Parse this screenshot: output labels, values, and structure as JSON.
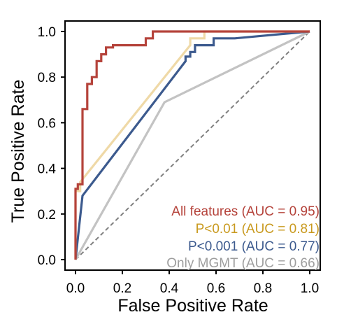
{
  "chart_data": {
    "type": "line",
    "title": "",
    "xlabel": "False Positive Rate",
    "ylabel": "True Positive Rate",
    "xlim": [
      0,
      1
    ],
    "ylim": [
      0,
      1
    ],
    "xticks": [
      "0.0",
      "0.2",
      "0.4",
      "0.6",
      "0.8",
      "1.0"
    ],
    "yticks": [
      "0.0",
      "0.2",
      "0.4",
      "0.6",
      "0.8",
      "1.0"
    ],
    "grid": false,
    "legend_position": "bottom-right",
    "reference_line": {
      "style": "dashed",
      "color": "#808080",
      "x": [
        0,
        1
      ],
      "y": [
        0,
        1
      ]
    },
    "series": [
      {
        "name": "All features (AUC = 0.95)",
        "color": "#B5433B",
        "x": [
          0.0,
          0.0,
          0.01,
          0.01,
          0.03,
          0.03,
          0.05,
          0.05,
          0.07,
          0.07,
          0.09,
          0.09,
          0.11,
          0.11,
          0.13,
          0.13,
          0.16,
          0.16,
          0.3,
          0.3,
          0.33,
          0.33,
          0.55,
          0.55,
          1.0
        ],
        "y": [
          0.0,
          0.31,
          0.31,
          0.33,
          0.33,
          0.66,
          0.66,
          0.77,
          0.77,
          0.8,
          0.8,
          0.87,
          0.87,
          0.9,
          0.9,
          0.93,
          0.93,
          0.94,
          0.94,
          0.97,
          0.97,
          1.0,
          1.0,
          1.0,
          1.0
        ]
      },
      {
        "name": "P<0.01 (AUC = 0.81)",
        "color": "#EFD9A7",
        "x": [
          0.0,
          0.0,
          0.02,
          0.02,
          0.49,
          0.49,
          0.55,
          0.55,
          1.0
        ],
        "y": [
          0.0,
          0.3,
          0.3,
          0.34,
          0.94,
          0.97,
          0.97,
          1.0,
          1.0
        ],
        "label_color": "#C99A1F"
      },
      {
        "name": "P<0.001 (AUC = 0.77)",
        "color": "#3C5A8E",
        "x": [
          0.0,
          0.03,
          0.47,
          0.47,
          0.49,
          0.49,
          0.51,
          0.51,
          0.59,
          0.59,
          0.68,
          0.68,
          1.0
        ],
        "y": [
          0.0,
          0.28,
          0.87,
          0.89,
          0.89,
          0.91,
          0.91,
          0.94,
          0.94,
          0.97,
          0.97,
          0.97,
          1.0
        ]
      },
      {
        "name": "Only MGMT (AUC = 0.66)",
        "color": "#C3C3C3",
        "x": [
          0.0,
          0.38,
          1.0
        ],
        "y": [
          0.0,
          0.69,
          1.0
        ],
        "label_color": "#9E9E9E"
      }
    ]
  }
}
